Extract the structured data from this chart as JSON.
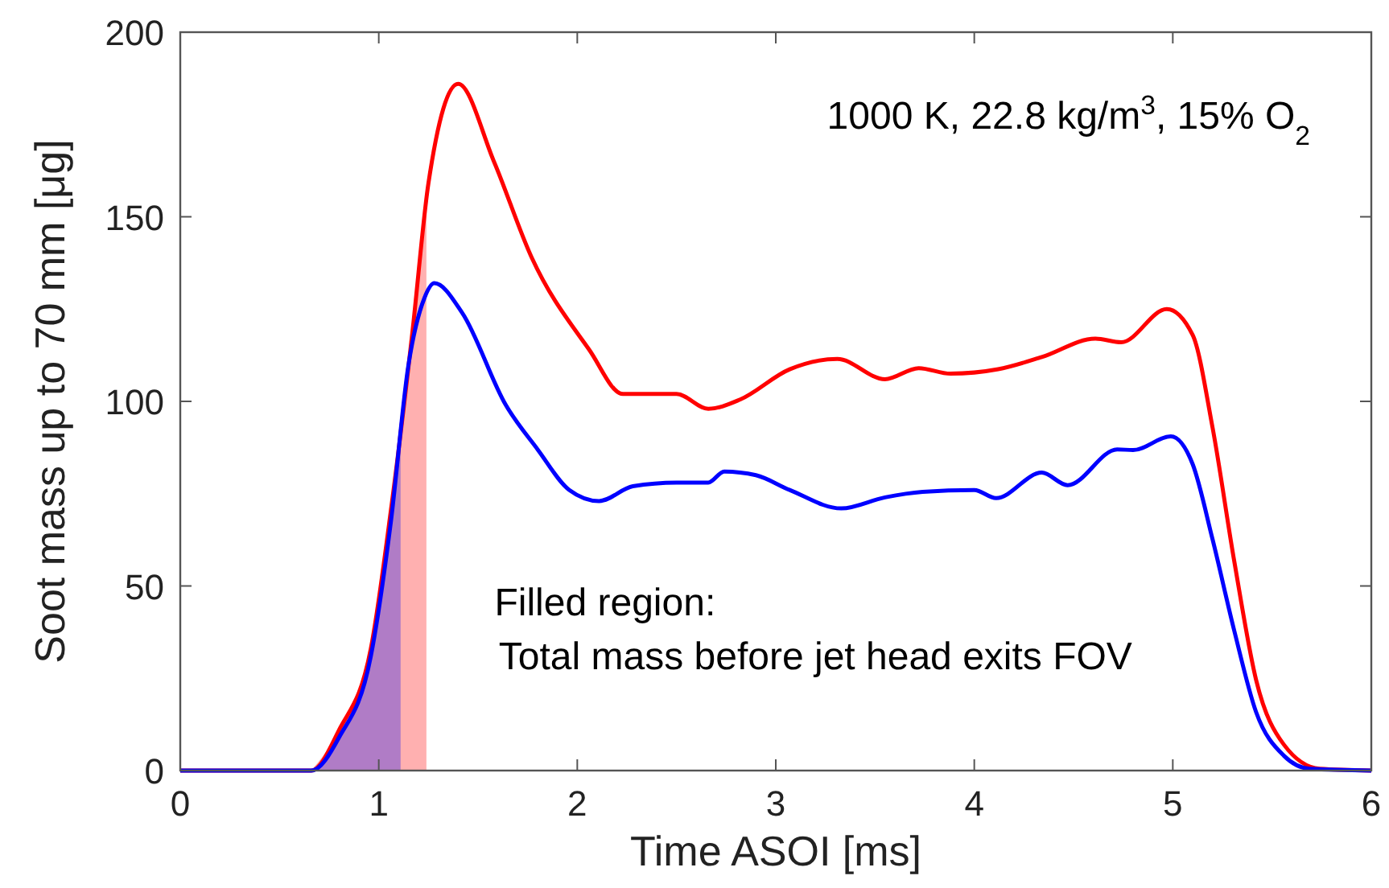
{
  "chart_data": {
    "type": "line",
    "xlabel": "Time ASOI [ms]",
    "ylabel": "Soot mass up to 70 mm [μg]",
    "annotations": [
      "1000 K, 22.8 kg/m$^{3}$, 15% O$_{2}$",
      "Filled region:",
      "Total mass before jet head exits FOV"
    ],
    "xlim": [
      0,
      6
    ],
    "xticks": [
      0,
      1,
      2,
      3,
      4,
      5,
      6
    ],
    "ylim": [
      0,
      200
    ],
    "yticks": [
      0,
      50,
      100,
      150,
      200
    ],
    "grid": false,
    "marker": "none",
    "line_style": "solid",
    "series": [
      {
        "type": "area",
        "color": "#ffb0b0",
        "x": [
          0.66,
          0.8,
          0.96,
          1.06,
          1.17,
          1.24
        ],
        "values": [
          0,
          11,
          33,
          70,
          119,
          156
        ]
      },
      {
        "type": "area",
        "color": "#b07cc6",
        "x": [
          0.66,
          0.8,
          0.96,
          1.06,
          1.11
        ],
        "values": [
          0,
          9,
          31,
          67,
          88
        ]
      },
      {
        "color": "#ff0000",
        "x": [
          0,
          0.66,
          0.8,
          0.96,
          1.06,
          1.17,
          1.25,
          1.4,
          1.58,
          1.77,
          2.06,
          2.23,
          2.5,
          2.66,
          2.82,
          3.07,
          3.31,
          3.55,
          3.72,
          3.88,
          4.12,
          4.34,
          4.61,
          4.74,
          4.97,
          5.1,
          5.2,
          5.31,
          5.42,
          5.56,
          5.74,
          6
        ],
        "values": [
          0,
          0,
          11,
          33,
          70,
          119,
          159,
          186,
          165,
          139,
          114,
          102,
          102,
          98,
          100.5,
          108.7,
          111.5,
          106,
          109,
          107.5,
          108.7,
          112,
          117,
          116,
          125,
          118,
          93,
          56.6,
          24.5,
          7,
          0.5,
          0
        ]
      },
      {
        "color": "#0000ff",
        "x": [
          0,
          0.66,
          0.8,
          0.96,
          1.06,
          1.15,
          1.23,
          1.28,
          1.42,
          1.64,
          1.8,
          1.96,
          2.11,
          2.28,
          2.5,
          2.66,
          2.74,
          2.9,
          3.07,
          3.33,
          3.55,
          3.74,
          4.0,
          4.11,
          4.34,
          4.47,
          4.72,
          4.8,
          4.99,
          5.1,
          5.2,
          5.31,
          5.42,
          5.56,
          5.69,
          6
        ],
        "values": [
          0,
          0,
          9,
          31,
          67,
          110,
          128,
          132,
          124,
          99,
          87,
          76,
          73,
          77,
          78,
          78,
          81,
          80,
          76,
          71,
          74,
          75.5,
          76,
          73.8,
          80.7,
          77.3,
          87,
          86.8,
          90.5,
          83,
          62.7,
          37.8,
          15.8,
          4,
          0.5,
          0
        ]
      }
    ]
  }
}
